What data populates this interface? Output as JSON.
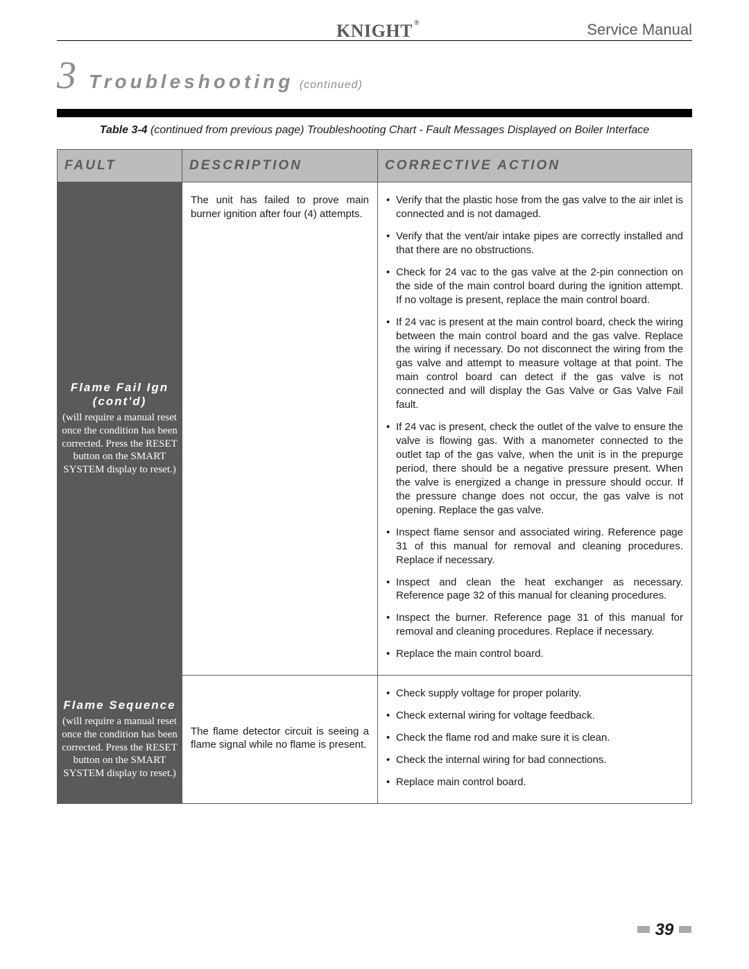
{
  "header": {
    "brand": "KNIGHT",
    "service_manual": "Service Manual"
  },
  "section": {
    "number": "3",
    "title": "Troubleshooting",
    "continued": "(continued)"
  },
  "caption": {
    "bold": "Table 3-4",
    "rest": "(continued from previous page) Troubleshooting Chart - Fault Messages Displayed on Boiler Interface"
  },
  "table": {
    "headers": {
      "fault": "FAULT",
      "description": "DESCRIPTION",
      "action": "CORRECTIVE ACTION"
    },
    "rows": [
      {
        "fault_title": "Flame Fail Ign (cont'd)",
        "fault_note": "(will require a manual reset once the condition has been corrected.  Press the RESET button on the SMART SYSTEM display to reset.)",
        "description": "The unit has failed to prove main burner ignition after four (4) attempts.",
        "actions": [
          "Verify that the plastic hose from the gas valve to the air inlet is connected and is not damaged.",
          "Verify that the vent/air intake pipes are correctly installed and that there are no obstructions.",
          "Check for 24 vac to the gas valve at the 2-pin connection on the side of the main control board during the ignition attempt.  If no voltage is present, replace the main control board.",
          "If 24 vac is present at the main control board, check the wiring between the main control board and the gas valve.  Replace the wiring if necessary.  Do not disconnect the wiring from the gas valve and attempt to measure voltage at that point.  The main control board can detect if the gas valve is not connected and will display the Gas Valve or Gas Valve Fail fault.",
          "If 24 vac is present, check the outlet of the valve to ensure the valve is flowing gas.  With a manometer connected to the outlet tap of the gas valve, when the unit is in the prepurge period, there should be a negative pressure present.  When the valve is energized a change in pressure should occur.  If the pressure change does not occur, the gas valve is not opening.  Replace the gas valve.",
          "Inspect flame sensor and associated wiring.  Reference page 31 of this manual for removal and cleaning procedures.  Replace if necessary.",
          "Inspect and clean the heat exchanger as necessary.  Reference page 32 of this manual for cleaning procedures.",
          "Inspect the burner.  Reference page 31 of this manual for removal and cleaning procedures.  Replace if necessary.",
          "Replace the main control board."
        ]
      },
      {
        "fault_title": "Flame Sequence",
        "fault_note": "(will require a manual reset once the condition has been corrected.  Press the RESET button on the SMART SYSTEM display to reset.)",
        "description": "The flame detector circuit is seeing a flame signal while no flame is present.",
        "actions": [
          "Check supply voltage for proper polarity.",
          "Check external wiring for voltage feedback.",
          "Check the flame rod and make sure it is clean.",
          "Check the internal wiring for bad connections.",
          "Replace main control board."
        ]
      }
    ]
  },
  "page_number": "39"
}
